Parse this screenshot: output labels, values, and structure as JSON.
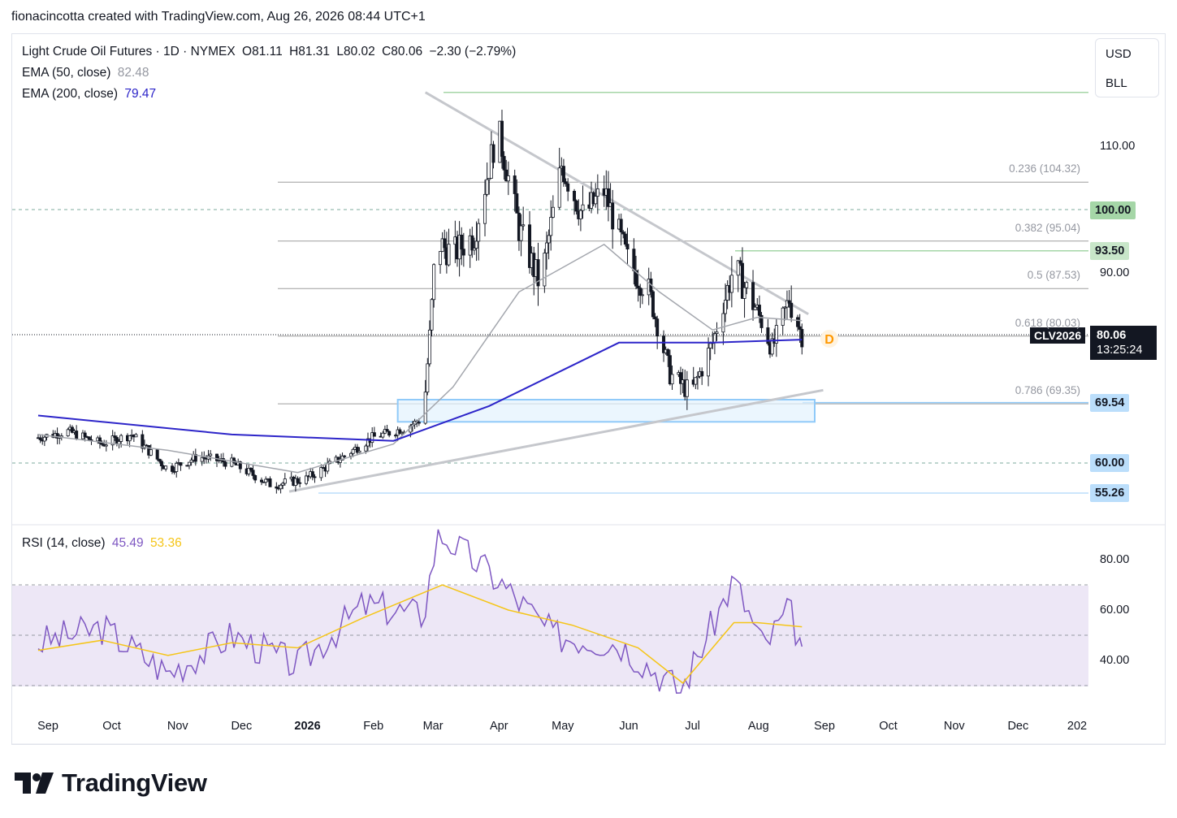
{
  "header": {
    "caption": "fionacincotta created with TradingView.com, Aug 26, 2026 08:44 UTC+1"
  },
  "legend": {
    "symbol": "Light Crude Oil Futures · 1D · NYMEX",
    "open": "O81.11",
    "high": "H81.31",
    "low": "L80.02",
    "close": "C80.06",
    "change": "−2.30 (−2.79%)",
    "ema50_label": "EMA (50, close)",
    "ema50_value": "82.48",
    "ema200_label": "EMA (200, close)",
    "ema200_value": "79.47",
    "rsi_label": "RSI (14, close)",
    "rsi_value": "45.49",
    "rsi_ma_value": "53.36"
  },
  "units": {
    "currency": "USD",
    "unit": "BLL"
  },
  "price_axis": [
    "110.00",
    "90.00"
  ],
  "rsi_axis": [
    "80.00",
    "60.00",
    "40.00"
  ],
  "price_tags": [
    {
      "text": "100.00",
      "bg": "#a5d6a7"
    },
    {
      "text": "93.50",
      "bg": "#c8e6c9"
    },
    {
      "text": "69.54",
      "bg": "#bbdefb"
    },
    {
      "text": "60.00",
      "bg": "#bbdefb"
    },
    {
      "text": "55.26",
      "bg": "#bbdefb"
    }
  ],
  "last_price": {
    "symbol": "CLV2026",
    "price": "80.06",
    "countdown": "13:25:24"
  },
  "dividend_marker": "D",
  "fib_levels": [
    {
      "label": "0.236 (104.32)",
      "value": 104.32
    },
    {
      "label": "0.382 (95.04)",
      "value": 95.04
    },
    {
      "label": "0.5 (87.53)",
      "value": 87.53
    },
    {
      "label": "0.618 (80.03)",
      "value": 80.03
    },
    {
      "label": "0.786 (69.35)",
      "value": 69.35
    }
  ],
  "time_axis": [
    "Sep",
    "Oct",
    "Nov",
    "Dec",
    "2026",
    "Feb",
    "Mar",
    "Apr",
    "May",
    "Jun",
    "Jul",
    "Aug",
    "Sep",
    "Oct",
    "Nov",
    "Dec",
    "202"
  ],
  "colors": {
    "ema50": "#a3a6ad",
    "ema200": "#2d25c9",
    "up": "#131722",
    "rsi": "#7e57c2",
    "rsi_ma": "#f5c518",
    "rsi_band": "#ede7f6"
  },
  "brand": {
    "name": "TradingView"
  },
  "chart_data": {
    "type": "candlestick",
    "y_scale": {
      "top_price": 121,
      "bottom_price": 52
    },
    "price_series": [
      [
        "2025-09-01",
        64
      ],
      [
        "2025-09-15",
        65
      ],
      [
        "2025-10-01",
        63
      ],
      [
        "2025-10-15",
        64.5
      ],
      [
        "2025-11-01",
        59
      ],
      [
        "2025-11-15",
        61
      ],
      [
        "2025-12-01",
        60
      ],
      [
        "2025-12-20",
        56.5
      ],
      [
        "2026-01-05",
        57.5
      ],
      [
        "2026-01-20",
        60.5
      ],
      [
        "2026-02-05",
        64
      ],
      [
        "2026-02-20",
        65.5
      ],
      [
        "2026-03-01",
        67
      ],
      [
        "2026-03-04",
        80
      ],
      [
        "2026-03-07",
        95
      ],
      [
        "2026-03-15",
        93
      ],
      [
        "2026-03-25",
        96
      ],
      [
        "2026-04-05",
        113
      ],
      [
        "2026-04-15",
        97
      ],
      [
        "2026-04-25",
        88
      ],
      [
        "2026-05-05",
        107
      ],
      [
        "2026-05-15",
        99
      ],
      [
        "2026-05-25",
        103
      ],
      [
        "2026-06-05",
        92
      ],
      [
        "2026-06-15",
        87
      ],
      [
        "2026-06-25",
        74
      ],
      [
        "2026-07-05",
        71
      ],
      [
        "2026-07-15",
        79
      ],
      [
        "2026-07-25",
        91
      ],
      [
        "2026-08-05",
        84
      ],
      [
        "2026-08-12",
        78
      ],
      [
        "2026-08-20",
        86
      ],
      [
        "2026-08-26",
        80.06
      ]
    ],
    "ema50": [
      [
        "2025-09-01",
        64.5
      ],
      [
        "2025-11-01",
        62
      ],
      [
        "2026-01-01",
        58.5
      ],
      [
        "2026-02-15",
        63
      ],
      [
        "2026-03-15",
        72
      ],
      [
        "2026-04-15",
        87
      ],
      [
        "2026-05-25",
        94.5
      ],
      [
        "2026-06-20",
        87
      ],
      [
        "2026-07-15",
        81
      ],
      [
        "2026-08-05",
        83
      ],
      [
        "2026-08-26",
        82.48
      ]
    ],
    "ema200": [
      [
        "2025-09-01",
        67.5
      ],
      [
        "2025-12-01",
        64.5
      ],
      [
        "2026-02-15",
        63.5
      ],
      [
        "2026-04-01",
        69
      ],
      [
        "2026-06-01",
        79
      ],
      [
        "2026-07-15",
        79
      ],
      [
        "2026-08-26",
        79.47
      ]
    ],
    "rsi": [
      [
        "2025-09-01",
        47
      ],
      [
        "2025-10-01",
        53
      ],
      [
        "2025-11-01",
        35
      ],
      [
        "2025-12-01",
        50
      ],
      [
        "2026-01-01",
        38
      ],
      [
        "2026-02-01",
        62
      ],
      [
        "2026-03-01",
        58
      ],
      [
        "2026-03-08",
        91
      ],
      [
        "2026-04-05",
        72
      ],
      [
        "2026-05-01",
        50
      ],
      [
        "2026-06-01",
        47
      ],
      [
        "2026-06-30",
        28
      ],
      [
        "2026-07-25",
        72
      ],
      [
        "2026-08-08",
        45
      ],
      [
        "2026-08-20",
        60
      ],
      [
        "2026-08-26",
        45.49
      ]
    ],
    "rsi_ma": [
      [
        "2025-09-01",
        44
      ],
      [
        "2025-10-01",
        48
      ],
      [
        "2025-11-01",
        42
      ],
      [
        "2025-12-01",
        47
      ],
      [
        "2026-01-01",
        45
      ],
      [
        "2026-02-01",
        57
      ],
      [
        "2026-03-10",
        70
      ],
      [
        "2026-04-10",
        60
      ],
      [
        "2026-05-10",
        54
      ],
      [
        "2026-06-10",
        45
      ],
      [
        "2026-07-01",
        31
      ],
      [
        "2026-07-25",
        55
      ],
      [
        "2026-08-05",
        55
      ],
      [
        "2026-08-26",
        53.36
      ]
    ],
    "rsi_bands": [
      70,
      50,
      30
    ],
    "horizontal_levels": [
      100,
      93.5,
      69.54,
      60,
      55.26,
      118.5
    ],
    "trendlines": [
      {
        "from": [
          "2026-03-02",
          118.5
        ],
        "to": [
          "2026-08-29",
          83.5
        ]
      },
      {
        "from": [
          "2025-12-28",
          55.5
        ],
        "to": [
          "2026-09-05",
          71.5
        ]
      }
    ],
    "support_zone": {
      "from": "2026-02-17",
      "to": "2026-09-01",
      "top": 70,
      "bottom": 66.5
    }
  }
}
